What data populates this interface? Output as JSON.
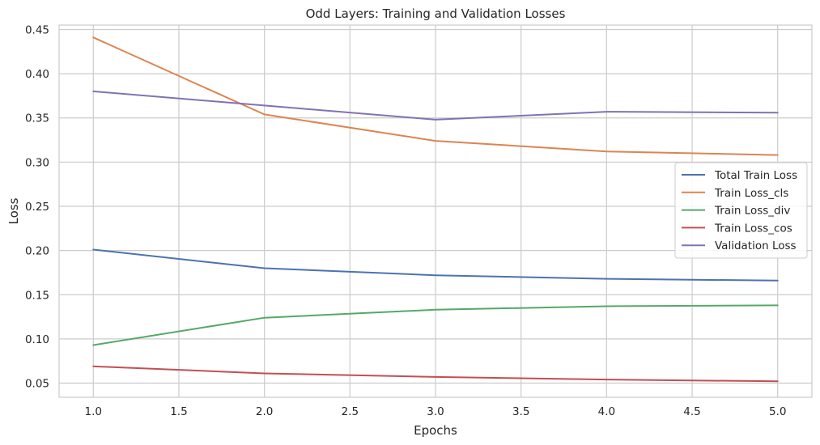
{
  "chart_data": {
    "type": "line",
    "title": "Odd Layers: Training and Validation Losses",
    "xlabel": "Epochs",
    "ylabel": "Loss",
    "x": [
      1,
      2,
      3,
      4,
      5
    ],
    "xlim": [
      0.8,
      5.2
    ],
    "ylim": [
      0.034,
      0.455
    ],
    "xticks": [
      "1.0",
      "1.5",
      "2.0",
      "2.5",
      "3.0",
      "3.5",
      "4.0",
      "4.5",
      "5.0"
    ],
    "yticks": [
      "0.05",
      "0.10",
      "0.15",
      "0.20",
      "0.25",
      "0.30",
      "0.35",
      "0.40",
      "0.45"
    ],
    "grid": true,
    "legend_position": "center-right",
    "series": [
      {
        "name": "Total Train Loss",
        "color": "#4c72b0",
        "values": [
          0.201,
          0.18,
          0.172,
          0.168,
          0.166
        ]
      },
      {
        "name": "Train Loss_cls",
        "color": "#dd8452",
        "values": [
          0.441,
          0.354,
          0.324,
          0.312,
          0.308
        ]
      },
      {
        "name": "Train Loss_div",
        "color": "#55a868",
        "values": [
          0.093,
          0.124,
          0.133,
          0.137,
          0.138
        ]
      },
      {
        "name": "Train Loss_cos",
        "color": "#c44e52",
        "values": [
          0.069,
          0.061,
          0.057,
          0.054,
          0.052
        ]
      },
      {
        "name": "Validation Loss",
        "color": "#8172b3",
        "values": [
          0.38,
          0.364,
          0.348,
          0.357,
          0.356
        ]
      }
    ]
  }
}
